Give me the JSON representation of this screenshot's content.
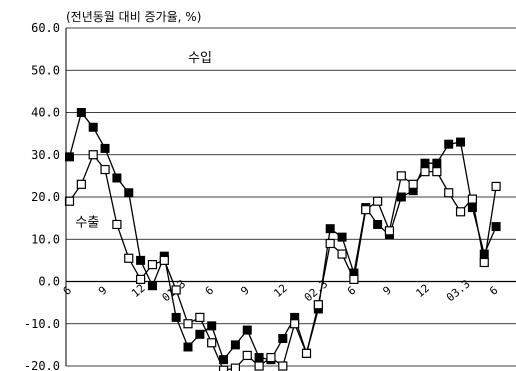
{
  "chart_data": {
    "type": "line",
    "title": "",
    "unit_label": "(전년동월 대비 증가율, %)",
    "xlabel": "",
    "ylabel": "",
    "ylim": [
      -20,
      60
    ],
    "yticks": [
      "60.0",
      "50.0",
      "40.0",
      "30.0",
      "20.0",
      "10.0",
      "0.0",
      "-10.0",
      "-20.0"
    ],
    "x_tick_labels": [
      {
        "index": 0,
        "label": "6"
      },
      {
        "index": 3,
        "label": "9"
      },
      {
        "index": 6,
        "label": "12"
      },
      {
        "index": 9,
        "label": "01.3"
      },
      {
        "index": 12,
        "label": "6"
      },
      {
        "index": 15,
        "label": "9"
      },
      {
        "index": 18,
        "label": "12"
      },
      {
        "index": 21,
        "label": "02.3"
      },
      {
        "index": 24,
        "label": "6"
      },
      {
        "index": 27,
        "label": "9"
      },
      {
        "index": 30,
        "label": "12"
      },
      {
        "index": 33,
        "label": "03.3"
      },
      {
        "index": 36,
        "label": "6"
      }
    ],
    "grid": true,
    "legend": "none",
    "series": [
      {
        "name": "수입",
        "marker": "filled-square",
        "color": "#000000",
        "values": [
          29.5,
          40,
          36.5,
          31.5,
          24.5,
          21,
          5,
          -1,
          6,
          -8.5,
          -15.5,
          -12.5,
          -10.5,
          -18.5,
          -15,
          -11.5,
          -18,
          -18.5,
          -13.5,
          -8.5,
          -17,
          -6.5,
          12.5,
          10.5,
          2,
          17.5,
          13.5,
          11,
          20,
          21.5,
          28,
          28,
          32.5,
          33,
          17.5,
          6.5,
          13
        ]
      },
      {
        "name": "수출",
        "marker": "open-square",
        "color": "#000000",
        "values": [
          19,
          23,
          30,
          26.5,
          13.5,
          5.5,
          0.5,
          4,
          5,
          -2,
          -10,
          -8.5,
          -14.5,
          -21,
          -20.5,
          -17.5,
          -20,
          -18,
          -20,
          -10,
          -17,
          -5.5,
          9,
          6.5,
          0.5,
          17,
          19,
          12,
          25,
          23,
          26,
          26,
          21,
          16.5,
          19.5,
          4.5,
          22.5
        ]
      }
    ],
    "annotations": [
      {
        "text": "수입",
        "x": 10,
        "y": 52
      },
      {
        "text": "수출",
        "x": 0.5,
        "y": 13
      }
    ]
  }
}
